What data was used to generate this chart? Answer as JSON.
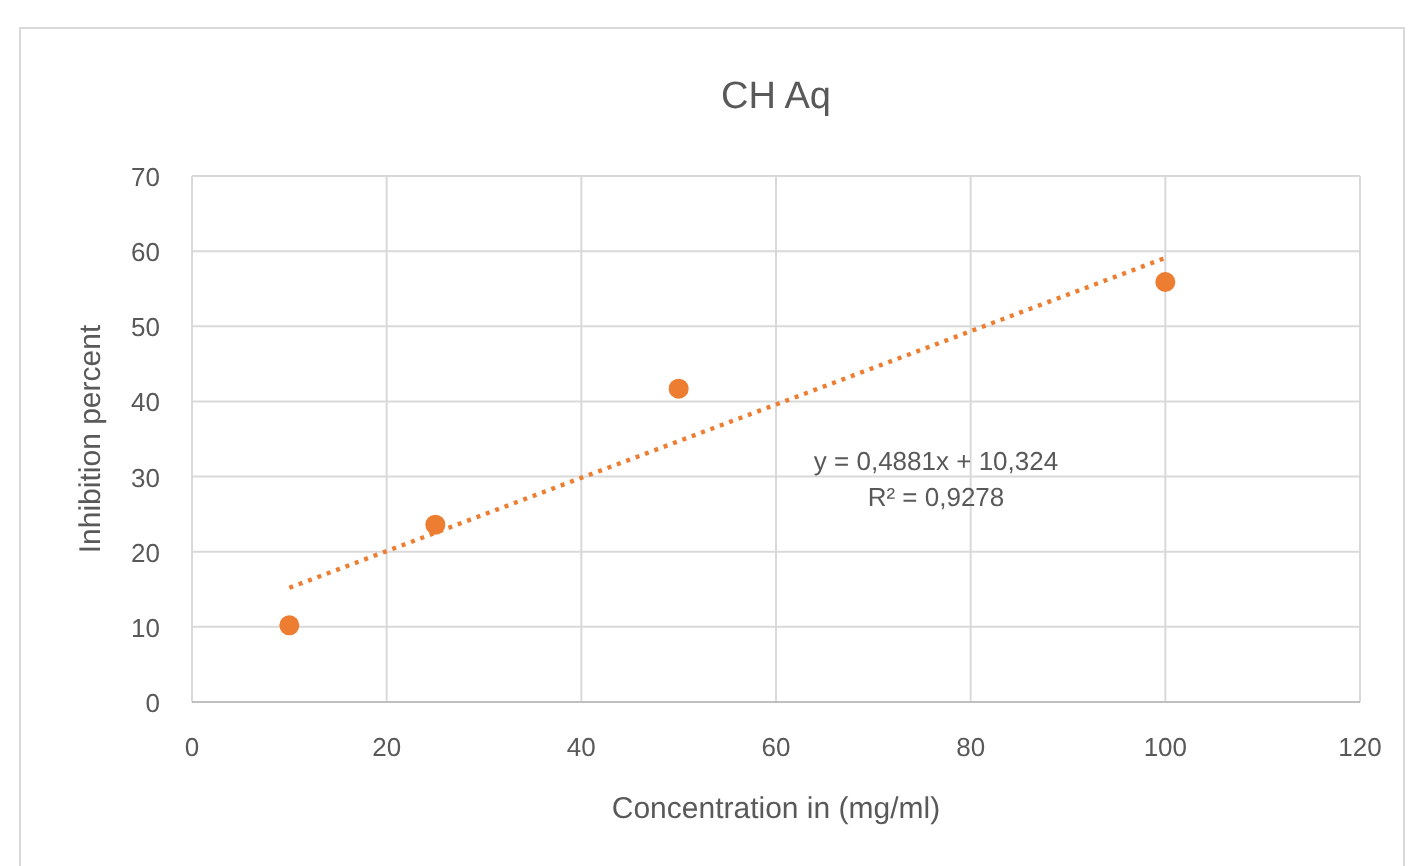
{
  "chart_data": {
    "type": "scatter",
    "title": "CH Aq",
    "xlabel": "Concentration in (mg/ml)",
    "ylabel": "Inhibition percent",
    "xlim": [
      0,
      120
    ],
    "xticks": [
      0,
      20,
      40,
      60,
      80,
      100,
      120
    ],
    "ylim": [
      0,
      70
    ],
    "yticks": [
      0,
      10,
      20,
      30,
      40,
      50,
      60,
      70
    ],
    "grid": true,
    "series": [
      {
        "color": "#ed7d31",
        "marker": "circle",
        "x": [
          10,
          25,
          50,
          100
        ],
        "values": [
          10.2,
          23.6,
          41.7,
          55.9
        ]
      },
      {
        "type": "line",
        "color": "#ed7d31",
        "marker": "none",
        "line_style": "dotted",
        "x": [
          10,
          100
        ],
        "values": [
          15.2,
          59.1
        ]
      }
    ],
    "annotations": [
      "y = 0,4881x + 10,324",
      "R² = 0,9278"
    ]
  }
}
